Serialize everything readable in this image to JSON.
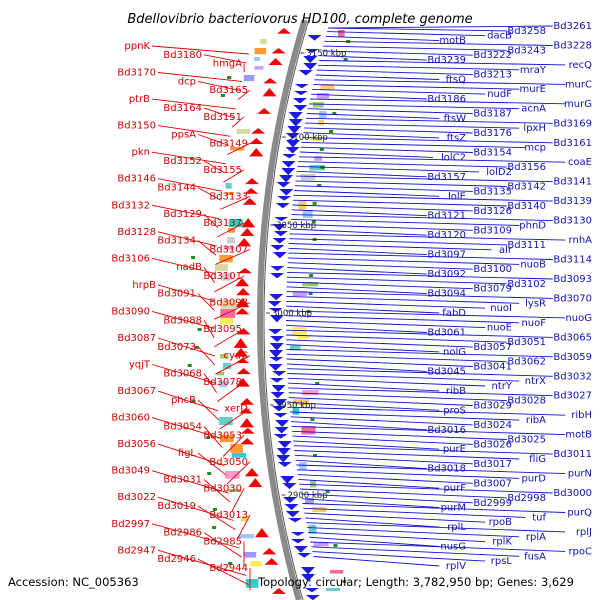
{
  "title": "Bdellovibrio bacteriovorus HD100, complete genome",
  "footer": {
    "accession": "Accession: NC_005363",
    "summary": "Topology: circular; Length: 3,782,950 bp; Genes: 3,629"
  },
  "ticks": [
    "3150 kbp",
    "3100 kbp",
    "3050 kbp",
    "3000 kbp",
    "2950 kbp",
    "2900 kbp"
  ],
  "left_labels": [
    "ppnK",
    "Bd3180",
    "hmgA",
    "Bd3170",
    "dcp",
    "Bd3165",
    "ptrB",
    "Bd3164",
    "Bd3151",
    "Bd3150",
    "ppsA",
    "Bd3149",
    "pkn",
    "Bd3152",
    "Bd3155",
    "Bd3146",
    "Bd3144",
    "Bd3133",
    "Bd3132",
    "Bd3129",
    "Bd3137",
    "Bd3128",
    "Bd3134",
    "Bd3107",
    "Bd3106",
    "nadB",
    "Bd3101",
    "hrpB",
    "Bd3091",
    "Bd3098",
    "Bd3090",
    "Bd3088",
    "Bd3095",
    "Bd3087",
    "Bd3073",
    "cyaC",
    "yqjT",
    "Bd3068",
    "Bd3078",
    "Bd3067",
    "phcB",
    "xerD",
    "Bd3060",
    "Bd3054",
    "Bd3053",
    "Bd3056",
    "figL",
    "Bd3050",
    "Bd3049",
    "Bd3031",
    "Bd3030",
    "Bd3022",
    "Bd3019",
    "Bd3013",
    "Bd2997",
    "Bd2986",
    "Bd2985",
    "Bd2947",
    "Bd2946",
    "Bd2944"
  ],
  "right_labels": [
    "Bd3261",
    "Bd3258",
    "dacB",
    "motB",
    "Bd3228",
    "Bd3243",
    "Bd3222",
    "Bd3239",
    "recQ",
    "mraY",
    "Bd3213",
    "ftsQ",
    "murC",
    "murE",
    "nudF",
    "Bd3186",
    "murG",
    "acnA",
    "Bd3187",
    "ftsW",
    "Bd3169",
    "lpxH",
    "Bd3176",
    "ftsZ",
    "Bd3161",
    "mcp",
    "Bd3154",
    "lolC2",
    "coaE",
    "Bd3156",
    "lolD2",
    "Bd3157",
    "Bd3141",
    "Bd3142",
    "Bd3135",
    "lolE",
    "Bd3139",
    "Bd3140",
    "Bd3126",
    "Bd3121",
    "Bd3130",
    "phnD",
    "Bd3109",
    "Bd3120",
    "rnhA",
    "Bd3111",
    "alr",
    "Bd3097",
    "Bd3114",
    "nuoB",
    "Bd3100",
    "Bd3092",
    "Bd3093",
    "Bd3102",
    "Bd3079",
    "Bd3094",
    "Bd3070",
    "lysR",
    "nuoI",
    "fabD",
    "nuoG",
    "nuoF",
    "nuoE",
    "Bd3061",
    "Bd3065",
    "Bd3051",
    "Bd3057",
    "nolG",
    "Bd3059",
    "Bd3062",
    "Bd3041",
    "Bd3045",
    "Bd3032",
    "ntrX",
    "ntrY",
    "ribB",
    "Bd3027",
    "Bd3028",
    "Bd3029",
    "proS",
    "ribH",
    "ribA",
    "Bd3024",
    "Bd3016",
    "motB",
    "Bd3025",
    "Bd3026",
    "purE",
    "Bd3011",
    "fliG",
    "Bd3017",
    "Bd3018",
    "purN",
    "purD",
    "Bd3007",
    "purF",
    "Bd3000",
    "Bd2998",
    "Bd2999",
    "purM",
    "purQ",
    "tuf",
    "rpoB",
    "rplL",
    "rplJ",
    "rplA",
    "rplK",
    "nusG",
    "rpoC",
    "fusA",
    "rpsL",
    "rplV"
  ]
}
